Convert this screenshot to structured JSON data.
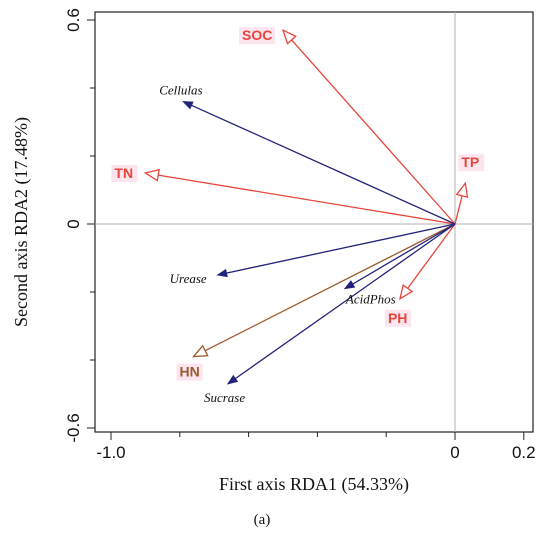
{
  "chart_data": {
    "type": "biplot",
    "xlabel": "First axis RDA1 (54.33%)",
    "ylabel": "Second axis RDA2 (17.48%)",
    "caption": "(a)",
    "xlim": [
      -1.0,
      0.22
    ],
    "ylim": [
      -0.62,
      0.62
    ],
    "x_ticks": [
      -1.0,
      0,
      0.2
    ],
    "x_tick_labels": [
      "-1.0",
      "0",
      "0.2"
    ],
    "y_ticks": [
      0.6,
      0,
      -0.6
    ],
    "y_tick_labels": [
      "0.6",
      "0",
      "-0.6"
    ],
    "reference_lines": {
      "x": 0,
      "y": 0
    },
    "colors": {
      "environmental": "#e8453c",
      "enzyme": "#23237a",
      "hn": "#9b5a2e",
      "reference": "#b0b0b0",
      "label_highlight": "#fbe0ec"
    },
    "environmental_vectors": [
      {
        "name": "SOC",
        "x": -0.5,
        "y": 0.57,
        "color": "#e8453c"
      },
      {
        "name": "TN",
        "x": -0.9,
        "y": 0.15,
        "color": "#e8453c"
      },
      {
        "name": "TP",
        "x": 0.03,
        "y": 0.12,
        "color": "#e8453c"
      },
      {
        "name": "PH",
        "x": -0.16,
        "y": -0.22,
        "color": "#e8453c"
      },
      {
        "name": "HN",
        "x": -0.76,
        "y": -0.39,
        "color": "#9b5a2e"
      }
    ],
    "enzyme_vectors": [
      {
        "name": "Cellulas",
        "x": -0.79,
        "y": 0.36
      },
      {
        "name": "Urease",
        "x": -0.69,
        "y": -0.15
      },
      {
        "name": "AcidPhos",
        "x": -0.32,
        "y": -0.19
      },
      {
        "name": "Sucrase",
        "x": -0.66,
        "y": -0.47
      }
    ]
  }
}
